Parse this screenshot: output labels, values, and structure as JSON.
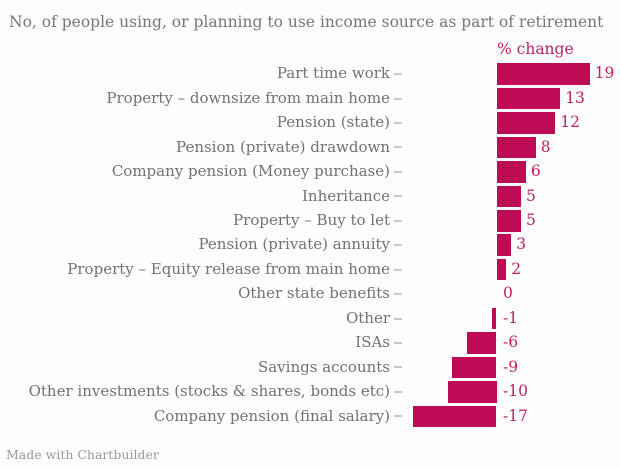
{
  "header": {
    "title": "No, of people using, or planning to use income source as part of retirement"
  },
  "footer": {
    "credit": "Made with Chartbuilder"
  },
  "colors": {
    "bar": "#be0b55",
    "pink_text": "#c01f62",
    "title_gray": "#7a7674",
    "label_gray": "#757070",
    "tick_gray": "#ccc8c6",
    "footer_gray": "#9e9997",
    "background": "#fdfdfd"
  },
  "chart_data": {
    "type": "bar",
    "orientation": "horizontal",
    "title": "No, of people using, or planning to use income source as part of retirement",
    "value_axis_label": "% change",
    "xlabel": "% change",
    "ylabel": "",
    "categories": [
      "Part time work",
      "Property – downsize from main home",
      "Pension (state)",
      "Pension (private) drawdown",
      "Company pension (Money purchase)",
      "Inheritance",
      "Property – Buy to let",
      "Pension (private) annuity",
      "Property – Equity release from main home",
      "Other state benefits",
      "Other",
      "ISAs",
      "Savings accounts",
      "Other investments (stocks & shares, bonds etc)",
      "Company pension (final salary)"
    ],
    "values": [
      19,
      13,
      12,
      8,
      6,
      5,
      5,
      3,
      2,
      0,
      -1,
      -6,
      -9,
      -10,
      -17
    ],
    "xlim": [
      -19,
      21
    ],
    "grid": false,
    "legend": "none",
    "data_labels": "outside-end",
    "credit": "Made with Chartbuilder"
  }
}
